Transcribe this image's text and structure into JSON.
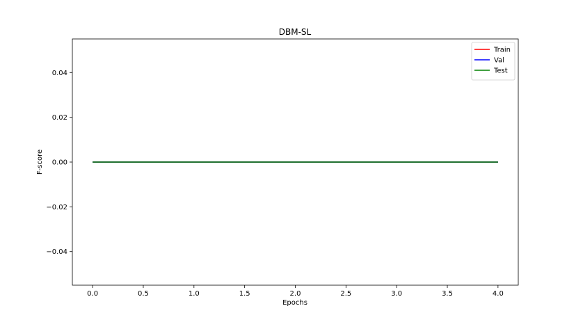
{
  "chart_data": {
    "type": "line",
    "title": "DBM-SL",
    "xlabel": "Epochs",
    "ylabel": "F-score",
    "xlim": [
      -0.2,
      4.2
    ],
    "ylim": [
      -0.055,
      0.055
    ],
    "x_ticks": [
      0.0,
      0.5,
      1.0,
      1.5,
      2.0,
      2.5,
      3.0,
      3.5,
      4.0
    ],
    "x_tick_labels": [
      "0.0",
      "0.5",
      "1.0",
      "1.5",
      "2.0",
      "2.5",
      "3.0",
      "3.5",
      "4.0"
    ],
    "y_ticks": [
      0.04,
      0.02,
      0.0,
      -0.02,
      -0.04
    ],
    "y_tick_labels": [
      "0.04",
      "0.02",
      "0.00",
      "−0.02",
      "−0.04"
    ],
    "grid": false,
    "legend_position": "top-right",
    "x": [
      0,
      1,
      2,
      3,
      4
    ],
    "series": [
      {
        "name": "Train",
        "color": "#ff0000",
        "values": [
          0,
          0,
          0,
          0,
          0
        ]
      },
      {
        "name": "Val",
        "color": "#0000ff",
        "values": [
          0,
          0,
          0,
          0,
          0
        ]
      },
      {
        "name": "Test",
        "color": "#008000",
        "values": [
          0,
          0,
          0,
          0,
          0
        ]
      }
    ]
  }
}
